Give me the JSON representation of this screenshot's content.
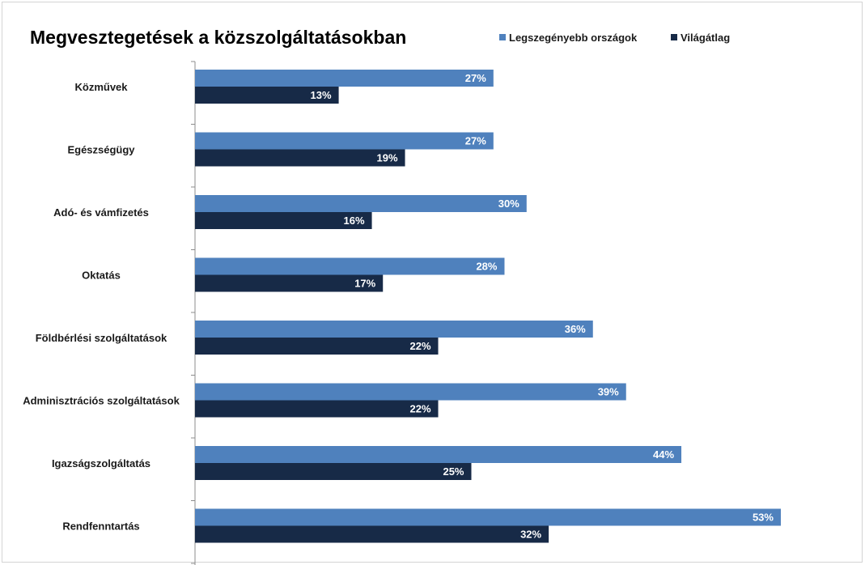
{
  "chart_data": {
    "type": "bar",
    "orientation": "horizontal",
    "title": "Megvesztegetések a közszolgáltatásokban",
    "categories": [
      "Közművek",
      "Egészségügy",
      "Adó- és vámfizetés",
      "Oktatás",
      "Földbérlési szolgáltatások",
      "Adminisztrációs szolgáltatások",
      "Igazságszolgáltatás",
      "Rendfenntartás"
    ],
    "series": [
      {
        "name": "Legszegényebb országok",
        "color": "#4f81bd",
        "values": [
          27,
          27,
          30,
          28,
          36,
          39,
          44,
          53
        ],
        "labels": [
          "27%",
          "27%",
          "30%",
          "28%",
          "36%",
          "39%",
          "44%",
          "53%"
        ]
      },
      {
        "name": "Világátlag",
        "color": "#172a47",
        "values": [
          13,
          19,
          16,
          17,
          22,
          22,
          25,
          32
        ],
        "labels": [
          "13%",
          "19%",
          "16%",
          "17%",
          "22%",
          "22%",
          "25%",
          "32%"
        ]
      }
    ],
    "value_unit": "%",
    "xlim": [
      0,
      53
    ],
    "grid": false,
    "legend_position": "top-right"
  }
}
